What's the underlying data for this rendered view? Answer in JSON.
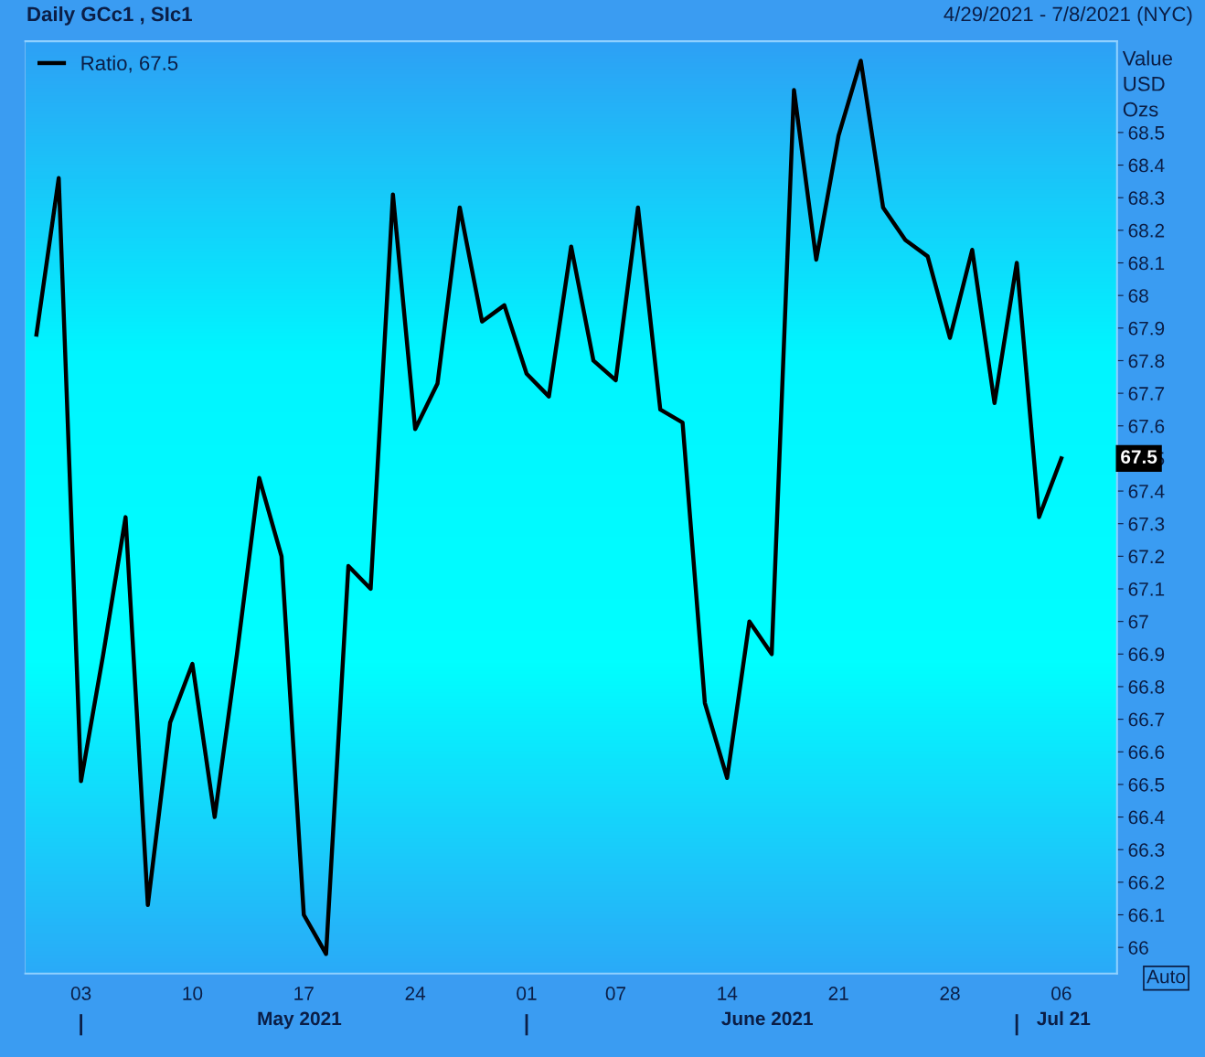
{
  "chart_data": {
    "type": "line",
    "title": "Daily GCc1 , SIc1",
    "subtitle": "4/29/2021 - 7/8/2021 (NYC)",
    "ylabel": "Value\nUSD\nOzs",
    "categories": [
      null,
      null,
      "03",
      null,
      null,
      null,
      null,
      "10",
      null,
      null,
      null,
      null,
      "17",
      null,
      null,
      null,
      null,
      "24",
      null,
      null,
      null,
      null,
      "01",
      null,
      null,
      null,
      "07",
      null,
      null,
      null,
      null,
      "14",
      null,
      null,
      null,
      null,
      "21",
      null,
      null,
      null,
      null,
      "28",
      null,
      null,
      null,
      null,
      "06"
    ],
    "series": [
      {
        "name": "Ratio, 67.5",
        "color": "#000000",
        "values": [
          67.88,
          68.36,
          66.51,
          66.9,
          67.32,
          66.13,
          66.69,
          66.87,
          66.4,
          66.9,
          67.44,
          67.2,
          66.1,
          65.98,
          67.17,
          67.1,
          68.31,
          67.59,
          67.73,
          68.27,
          67.92,
          67.97,
          67.76,
          67.69,
          68.15,
          67.8,
          67.74,
          68.27,
          67.65,
          67.61,
          66.75,
          66.52,
          67.0,
          66.9,
          68.63,
          68.11,
          68.49,
          68.72,
          68.27,
          68.17,
          68.12,
          67.87,
          68.14,
          67.67,
          68.1,
          67.32,
          67.5
        ]
      }
    ],
    "ylim": [
      65.92,
      68.78
    ],
    "yticks": [
      66,
      66.1,
      66.2,
      66.3,
      66.4,
      66.5,
      66.6,
      66.7,
      66.8,
      66.9,
      67,
      67.1,
      67.2,
      67.3,
      67.4,
      67.5,
      67.6,
      67.7,
      67.8,
      67.9,
      68,
      68.1,
      68.2,
      68.3,
      68.4,
      68.5
    ],
    "annotations": [
      "May 2021",
      "June 2021",
      "Jul 21",
      "67.5",
      "Auto"
    ],
    "legend": "top left",
    "grid": false,
    "marker": "none",
    "line_style": "solid"
  }
}
